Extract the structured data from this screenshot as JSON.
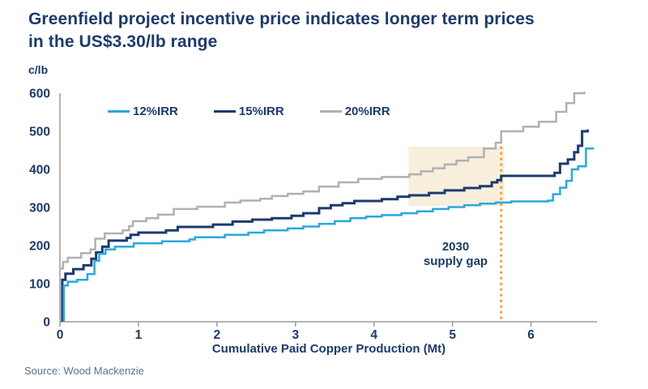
{
  "header": {
    "title_line1": "Greenfield project incentive price indicates longer term prices",
    "title_line2": "in the US$3.30/lb range"
  },
  "footer": {
    "source": "Source: Wood Mackenzie"
  },
  "colors": {
    "heading_navy": "#1c3a6e",
    "axis_gray": "#9c9c9c",
    "tick_label_navy": "#1c3a6e",
    "shaded_region": "#f7efdc",
    "dotted_line_orange": "#efa22d",
    "source_text": "#5d7092"
  },
  "chart_data": {
    "type": "line",
    "step": true,
    "title": "Greenfield project incentive price indicates longer term prices in the US$3.30/lb range",
    "ylabel": "c/lb",
    "xlabel": "Cumulative Paid Copper Production  (Mt)",
    "xlim": [
      0,
      6.85
    ],
    "ylim": [
      0,
      600
    ],
    "x_ticks": [
      0,
      1,
      2,
      3,
      4,
      5,
      6
    ],
    "y_ticks": [
      0,
      100,
      200,
      300,
      400,
      500,
      600
    ],
    "grid": false,
    "legend_position": "top-left-inside",
    "series": [
      {
        "name": "12%IRR",
        "color": "#29a8e0",
        "width": 2.5,
        "points": [
          [
            0.05,
            0
          ],
          [
            0.05,
            95
          ],
          [
            0.1,
            105
          ],
          [
            0.22,
            110
          ],
          [
            0.35,
            125
          ],
          [
            0.44,
            160
          ],
          [
            0.5,
            178
          ],
          [
            0.58,
            190
          ],
          [
            0.7,
            197
          ],
          [
            0.94,
            206
          ],
          [
            1.3,
            211
          ],
          [
            1.65,
            216
          ],
          [
            1.72,
            222
          ],
          [
            2.1,
            228
          ],
          [
            2.4,
            234
          ],
          [
            2.6,
            240
          ],
          [
            2.9,
            245
          ],
          [
            3.1,
            250
          ],
          [
            3.3,
            257
          ],
          [
            3.5,
            264
          ],
          [
            3.7,
            272
          ],
          [
            3.9,
            276
          ],
          [
            4.1,
            280
          ],
          [
            4.35,
            285
          ],
          [
            4.55,
            290
          ],
          [
            4.75,
            296
          ],
          [
            4.95,
            301
          ],
          [
            5.15,
            306
          ],
          [
            5.35,
            310
          ],
          [
            5.55,
            313
          ],
          [
            5.75,
            316
          ],
          [
            6.22,
            318
          ],
          [
            6.28,
            335
          ],
          [
            6.37,
            352
          ],
          [
            6.45,
            370
          ],
          [
            6.52,
            400
          ],
          [
            6.6,
            408
          ],
          [
            6.7,
            455
          ],
          [
            6.8,
            455
          ]
        ]
      },
      {
        "name": "15%IRR",
        "color": "#1c3a6e",
        "width": 3,
        "points": [
          [
            0.03,
            0
          ],
          [
            0.03,
            110
          ],
          [
            0.07,
            126
          ],
          [
            0.17,
            138
          ],
          [
            0.3,
            148
          ],
          [
            0.4,
            165
          ],
          [
            0.46,
            182
          ],
          [
            0.54,
            197
          ],
          [
            0.62,
            213
          ],
          [
            0.85,
            220
          ],
          [
            0.9,
            228
          ],
          [
            1.0,
            234
          ],
          [
            1.35,
            240
          ],
          [
            1.5,
            249
          ],
          [
            1.95,
            255
          ],
          [
            2.2,
            263
          ],
          [
            2.45,
            268
          ],
          [
            2.7,
            272
          ],
          [
            2.95,
            278
          ],
          [
            3.1,
            285
          ],
          [
            3.3,
            298
          ],
          [
            3.45,
            306
          ],
          [
            3.6,
            311
          ],
          [
            3.75,
            317
          ],
          [
            4.1,
            322
          ],
          [
            4.3,
            328
          ],
          [
            4.45,
            332
          ],
          [
            4.7,
            338
          ],
          [
            4.9,
            345
          ],
          [
            5.15,
            351
          ],
          [
            5.35,
            356
          ],
          [
            5.5,
            366
          ],
          [
            5.57,
            372
          ],
          [
            5.62,
            383
          ],
          [
            6.3,
            391
          ],
          [
            6.37,
            415
          ],
          [
            6.47,
            426
          ],
          [
            6.55,
            445
          ],
          [
            6.6,
            462
          ],
          [
            6.65,
            500
          ],
          [
            6.72,
            505
          ]
        ]
      },
      {
        "name": "20%IRR",
        "color": "#b1b1b1",
        "width": 2.5,
        "points": [
          [
            0,
            140
          ],
          [
            0.04,
            157
          ],
          [
            0.1,
            168
          ],
          [
            0.27,
            180
          ],
          [
            0.39,
            190
          ],
          [
            0.45,
            218
          ],
          [
            0.57,
            232
          ],
          [
            0.8,
            240
          ],
          [
            0.88,
            251
          ],
          [
            0.93,
            264
          ],
          [
            1.1,
            272
          ],
          [
            1.25,
            281
          ],
          [
            1.45,
            296
          ],
          [
            1.75,
            302
          ],
          [
            2.1,
            313
          ],
          [
            2.3,
            318
          ],
          [
            2.55,
            323
          ],
          [
            2.7,
            330
          ],
          [
            2.9,
            336
          ],
          [
            3.1,
            342
          ],
          [
            3.3,
            355
          ],
          [
            3.55,
            366
          ],
          [
            3.8,
            375
          ],
          [
            4.1,
            380
          ],
          [
            4.45,
            387
          ],
          [
            4.6,
            395
          ],
          [
            4.75,
            403
          ],
          [
            4.9,
            413
          ],
          [
            5.05,
            423
          ],
          [
            5.2,
            432
          ],
          [
            5.4,
            455
          ],
          [
            5.55,
            470
          ],
          [
            5.62,
            500
          ],
          [
            5.9,
            512
          ],
          [
            6.1,
            525
          ],
          [
            6.32,
            551
          ],
          [
            6.45,
            574
          ],
          [
            6.55,
            600
          ],
          [
            6.68,
            604
          ]
        ]
      }
    ],
    "annotations": {
      "shaded_region": {
        "x0": 4.44,
        "x1": 5.66,
        "y0": 304,
        "y1": 460,
        "color": "#f7efdc"
      },
      "dotted_line": {
        "x": 5.62,
        "y0": 0,
        "y1": 460,
        "color": "#efa22d"
      },
      "label_line1": "2030",
      "label_line2": "supply gap"
    }
  }
}
